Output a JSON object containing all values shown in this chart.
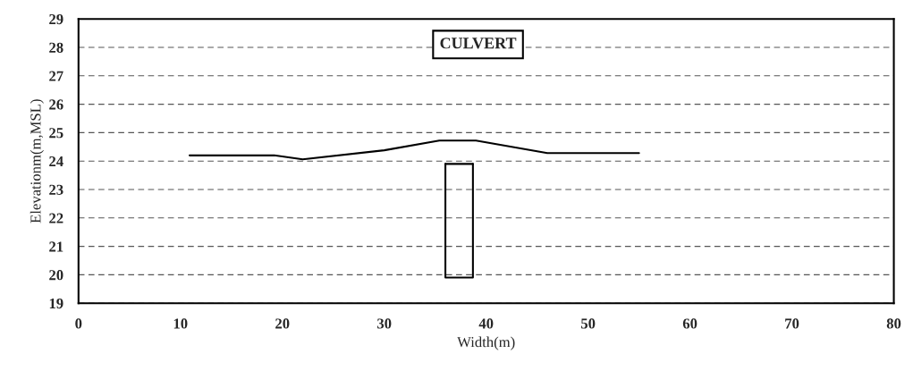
{
  "chart_data": {
    "type": "line",
    "xlabel": "Width(m)",
    "ylabel": "Elevationm(m,MSL)",
    "annotations": [
      "CULVERT"
    ],
    "series": [
      {
        "color": "#000000",
        "x": [
          10.9,
          19.2,
          22.0,
          30.0,
          35.4,
          39.0,
          46.0,
          55.0
        ],
        "values": [
          24.2,
          24.2,
          24.06,
          24.38,
          24.72,
          24.72,
          24.28,
          24.28
        ]
      },
      {
        "color": "#000000",
        "x": [
          36.0,
          36.0,
          38.7,
          38.7
        ],
        "values": [
          23.9,
          19.9,
          19.9,
          23.9
        ]
      },
      {
        "color": "#000000",
        "x": [
          36.0,
          38.7
        ],
        "values": [
          23.9,
          23.9
        ]
      }
    ],
    "xlim": [
      0,
      80
    ],
    "xticks": [
      0,
      10,
      20,
      30,
      40,
      50,
      60,
      70,
      80
    ],
    "ylim": [
      19,
      29
    ],
    "yticks": [
      19,
      20,
      21,
      22,
      23,
      24,
      25,
      26,
      27,
      28,
      29
    ],
    "grid": "y",
    "marker": "none",
    "line_style": "solid"
  }
}
